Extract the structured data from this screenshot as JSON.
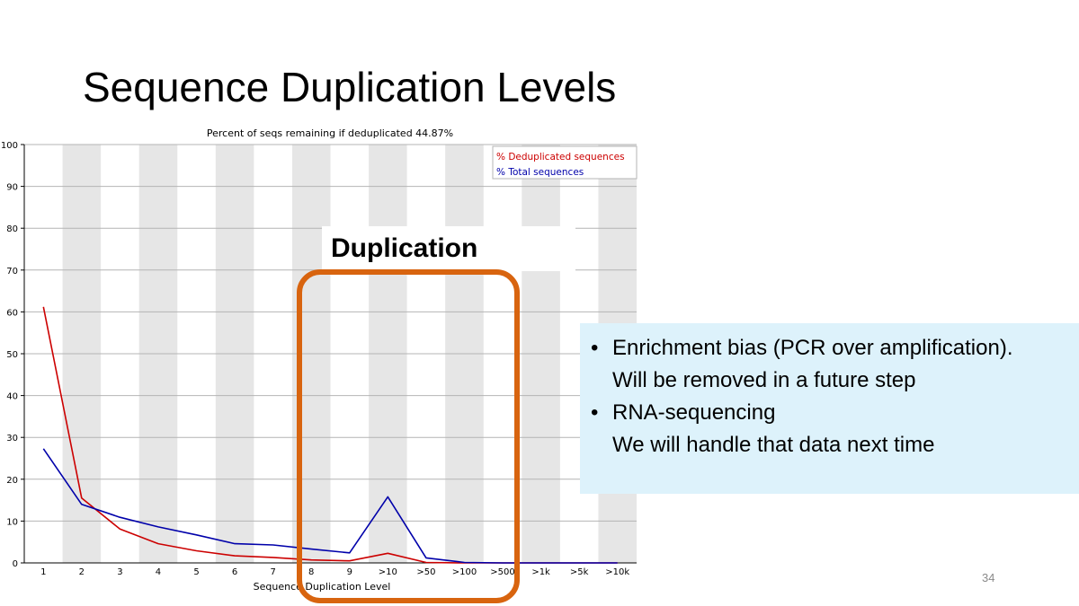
{
  "slide": {
    "title": "Sequence Duplication Levels",
    "page_number": "34"
  },
  "callout": {
    "label": "Duplication",
    "box_color": "#d8640f"
  },
  "info_box": {
    "background": "#ddf2fb",
    "bullets": [
      {
        "lines": [
          "Enrichment bias (PCR over amplification).",
          "Will be removed in a future step"
        ]
      },
      {
        "lines": [
          "RNA-sequencing",
          "We will handle that data next time"
        ]
      }
    ]
  },
  "chart_data": {
    "type": "line",
    "title": "Percent of seqs remaining if deduplicated 44.87%",
    "xlabel": "Sequence Duplication Level",
    "ylabel": "",
    "ylim": [
      0,
      100
    ],
    "yticks": [
      "0",
      "10",
      "20",
      "30",
      "40",
      "50",
      "60",
      "70",
      "80",
      "90",
      "100"
    ],
    "categories": [
      "1",
      "2",
      "3",
      "4",
      "5",
      "6",
      "7",
      "8",
      "9",
      ">10",
      ">50",
      ">100",
      ">500",
      ">1k",
      ">5k",
      ">10k"
    ],
    "grid": true,
    "legend_position": "top-right",
    "series": [
      {
        "name": "% Deduplicated sequences",
        "color": "#cc0000",
        "values": [
          61.2,
          15.5,
          8.1,
          4.6,
          2.9,
          1.7,
          1.3,
          0.7,
          0.5,
          2.3,
          0.1,
          0,
          0,
          0,
          0,
          0
        ]
      },
      {
        "name": "% Total sequences",
        "color": "#0000aa",
        "values": [
          27.3,
          14.0,
          10.9,
          8.6,
          6.7,
          4.6,
          4.3,
          3.3,
          2.4,
          15.8,
          1.2,
          0.1,
          0,
          0,
          0,
          0
        ]
      }
    ]
  }
}
